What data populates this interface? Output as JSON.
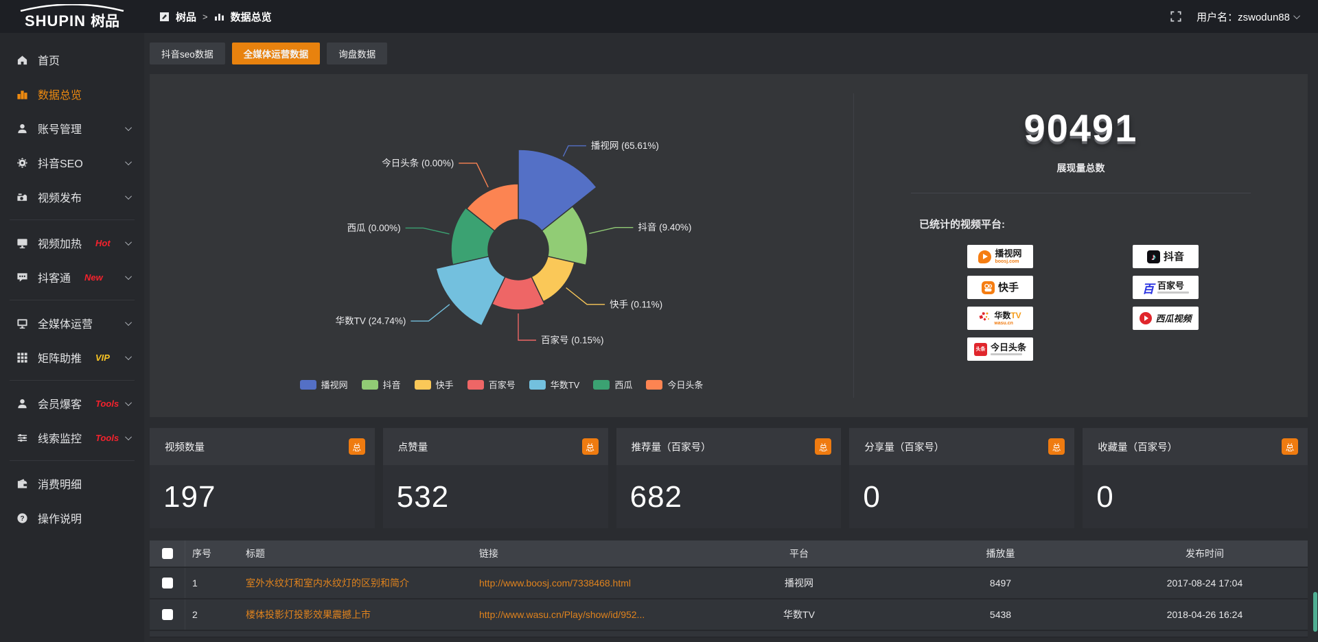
{
  "brand": {
    "logo_en": "SHUPIN",
    "logo_cn": "树品"
  },
  "topbar": {
    "breadcrumb_root": "树品",
    "breadcrumb_sep": ">",
    "breadcrumb_current": "数据总览",
    "username": "用户名：zswodun88"
  },
  "sidebar": {
    "items": [
      {
        "label": "首页",
        "icon": "home-icon"
      },
      {
        "label": "数据总览",
        "icon": "bar-chart-icon",
        "active": true
      },
      {
        "label": "账号管理",
        "icon": "user-icon",
        "chevron": true
      },
      {
        "label": "抖音SEO",
        "icon": "gear-icon",
        "chevron": true
      },
      {
        "label": "视频发布",
        "icon": "video-publish-icon",
        "chevron": true
      },
      {
        "label": "视频加热",
        "icon": "monitor-play-icon",
        "badge": "Hot",
        "badge_color": "#f5222d",
        "chevron": true
      },
      {
        "label": "抖客通",
        "icon": "chat-icon",
        "badge": "New",
        "badge_color": "#f5222d",
        "chevron": true
      },
      {
        "label": "全媒体运营",
        "icon": "monitor-icon",
        "chevron": true
      },
      {
        "label": "矩阵助推",
        "icon": "grid-icon",
        "badge": "VIP",
        "badge_color": "#f7c324",
        "chevron": true
      },
      {
        "label": "会员爆客",
        "icon": "member-icon",
        "badge": "Tools",
        "badge_color": "#f5222d",
        "chevron": true
      },
      {
        "label": "线索监控",
        "icon": "sliders-icon",
        "badge": "Tools",
        "badge_color": "#f5222d",
        "chevron": true
      },
      {
        "label": "消费明细",
        "icon": "wallet-icon"
      },
      {
        "label": "操作说明",
        "icon": "help-icon"
      }
    ]
  },
  "tabs": {
    "items": [
      "抖音seo数据",
      "全媒体运营数据",
      "询盘数据"
    ],
    "active_index": 1,
    "active_color": "#e8820e"
  },
  "chart_data": {
    "type": "pie",
    "variant": "nightingale-rose",
    "inner_radius": 44,
    "legend_position": "bottom",
    "series": [
      {
        "name": "播视网",
        "percent": "65.61",
        "color": "#5470c6",
        "radius": 146
      },
      {
        "name": "抖音",
        "percent": "9.40",
        "color": "#91cc75",
        "radius": 101
      },
      {
        "name": "快手",
        "percent": "0.11",
        "color": "#fac858",
        "radius": 84
      },
      {
        "name": "百家号",
        "percent": "0.15",
        "color": "#ee6666",
        "radius": 88
      },
      {
        "name": "华数TV",
        "percent": "24.74",
        "color": "#73c0de",
        "radius": 123
      },
      {
        "name": "西瓜",
        "percent": "0.00",
        "color": "#3ba272",
        "radius": 98
      },
      {
        "name": "今日头条",
        "percent": "0.00",
        "color": "#fc8452",
        "radius": 96
      }
    ]
  },
  "summary": {
    "total": "90491",
    "total_label": "展现量总数",
    "platforms_title": "已统计的视频平台:",
    "platforms": [
      {
        "name": "播视网",
        "sub": "boosj.com",
        "icon": "boosj-logo"
      },
      {
        "name": "抖音",
        "icon": "douyin-logo"
      },
      {
        "name": "快手",
        "icon": "kuaishou-logo"
      },
      {
        "name": "百家号",
        "icon": "baijiahao-logo"
      },
      {
        "name_main": "华数",
        "name_accent": "TV",
        "sub": "wasu.cn",
        "icon": "wasu-logo"
      },
      {
        "name": "西瓜视频",
        "icon": "xigua-logo"
      },
      {
        "name": "今日头条",
        "icon_text": "头条",
        "icon": "toutiao-logo"
      }
    ]
  },
  "stat_cards": [
    {
      "label": "视频数量",
      "badge": "总",
      "value": "197"
    },
    {
      "label": "点赞量",
      "badge": "总",
      "value": "532"
    },
    {
      "label": "推荐量（百家号）",
      "badge": "总",
      "value": "682"
    },
    {
      "label": "分享量（百家号）",
      "badge": "总",
      "value": "0"
    },
    {
      "label": "收藏量（百家号）",
      "badge": "总",
      "value": "0"
    }
  ],
  "table": {
    "headers": [
      "序号",
      "标题",
      "链接",
      "平台",
      "播放量",
      "发布时间"
    ],
    "rows": [
      {
        "no": "1",
        "title": "室外水纹灯和室内水纹灯的区别和简介",
        "link": "http://www.boosj.com/7338468.html",
        "platform": "播视网",
        "plays": "8497",
        "time": "2017-08-24 17:04"
      },
      {
        "no": "2",
        "title": "楼体投影灯投影效果震撼上市",
        "link": "http://www.wasu.cn/Play/show/id/952...",
        "platform": "华数TV",
        "plays": "5438",
        "time": "2018-04-26 16:24"
      }
    ]
  },
  "colors": {
    "accent_orange": "#e8820e",
    "badge_orange": "#ef7b10",
    "link_orange": "#e0831d",
    "hot_red": "#f5222d",
    "vip_yellow": "#f7c324",
    "scroll_teal": "#4fae92"
  }
}
